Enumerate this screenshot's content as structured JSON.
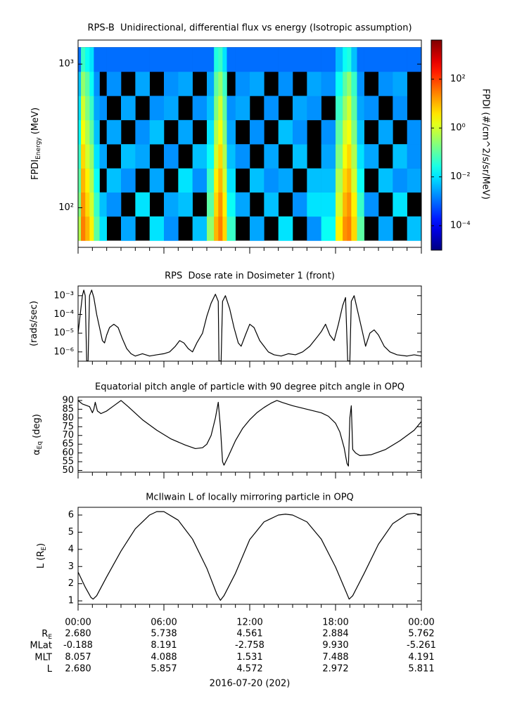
{
  "time_axis": {
    "xlim": [
      0,
      24
    ],
    "xticks": [
      {
        "value": 0,
        "label": "00:00"
      },
      {
        "value": 6,
        "label": "06:00"
      },
      {
        "value": 12,
        "label": "12:00"
      },
      {
        "value": 18,
        "label": "18:00"
      },
      {
        "value": 24,
        "label": "00:00"
      }
    ],
    "xminor_ticks": [
      1,
      2,
      3,
      4,
      5,
      7,
      8,
      9,
      10,
      11,
      13,
      14,
      15,
      16,
      17,
      19,
      20,
      21,
      22,
      23
    ],
    "xlabel": "2016-07-20 (202)"
  },
  "chart_data": [
    {
      "type": "heatmap",
      "title": "RPS-B  Unidirectional, differential flux vs energy (Isotropic assumption)",
      "ylabel": [
        {
          "text": "FPDI"
        },
        {
          "text": "Energy",
          "sub": true
        },
        {
          "text": " (MeV)"
        }
      ],
      "ylog": true,
      "ylim": [
        53,
        1470
      ],
      "yticks": [
        {
          "value": 100,
          "label": "10²"
        },
        {
          "value": 1000,
          "label": "10³"
        }
      ],
      "colorbar_label": "FPDI (#/cm^2/s/sr/MeV)",
      "zlim": [
        1e-05,
        4000
      ],
      "zticks": [
        {
          "value": 0.0001,
          "label": "10⁻⁴"
        },
        {
          "value": 0.01,
          "label": "10⁻²"
        },
        {
          "value": 1,
          "label": "10⁰"
        },
        {
          "value": 100,
          "label": "10²"
        }
      ],
      "x_edges": [
        0,
        0.2,
        0.5,
        0.8,
        1.1,
        1.5,
        2,
        3,
        4,
        5,
        6,
        7,
        8,
        9,
        9.5,
        9.8,
        10.1,
        10.4,
        11,
        12,
        13,
        14,
        15,
        16,
        17,
        18,
        18.5,
        18.8,
        19.1,
        19.5,
        20,
        21,
        22,
        23,
        24
      ],
      "y_edges": [
        59,
        87,
        128,
        188,
        277,
        408,
        601,
        886,
        1310
      ],
      "z": [
        [
          0.5,
          30,
          10,
          3,
          0.1,
          0.01,
          null,
          0.003,
          null,
          0.01,
          0.002,
          null,
          0.005,
          0.3,
          10,
          30,
          5,
          0.05,
          null,
          0.003,
          null,
          0.01,
          null,
          0.002,
          0.02,
          3,
          20,
          30,
          5,
          0.1,
          null,
          0.003,
          null,
          0.005
        ],
        [
          0.2,
          20,
          5,
          1,
          0.05,
          0.005,
          0.002,
          null,
          0.01,
          null,
          0.003,
          0.005,
          null,
          0.1,
          5,
          20,
          3,
          0.02,
          0.003,
          null,
          0.005,
          null,
          0.002,
          0.01,
          0.01,
          1,
          10,
          20,
          3,
          0.05,
          0.002,
          null,
          0.01,
          null
        ],
        [
          0.1,
          10,
          3,
          0.5,
          0.02,
          null,
          0.005,
          0.002,
          null,
          0.003,
          null,
          0.01,
          0.002,
          0.05,
          3,
          10,
          1,
          0.01,
          null,
          0.005,
          0.002,
          0.003,
          null,
          0.005,
          0.005,
          0.5,
          5,
          10,
          1,
          0.02,
          null,
          0.005,
          0.002,
          0.003
        ],
        [
          0.05,
          5,
          1,
          0.3,
          0.01,
          0.003,
          null,
          0.005,
          0.003,
          null,
          0.002,
          null,
          0.005,
          0.02,
          1,
          5,
          0.5,
          0.005,
          0.002,
          null,
          0.003,
          null,
          0.005,
          null,
          0.003,
          0.2,
          2,
          5,
          0.5,
          0.01,
          0.003,
          null,
          0.005,
          0.002
        ],
        [
          0.02,
          2,
          0.5,
          0.1,
          0.005,
          null,
          0.003,
          null,
          0.002,
          0.005,
          null,
          0.003,
          null,
          0.01,
          0.5,
          2,
          0.2,
          0.003,
          null,
          0.002,
          null,
          0.005,
          0.002,
          null,
          0.002,
          0.1,
          1,
          2,
          0.2,
          0.005,
          null,
          0.003,
          null,
          0.002
        ],
        [
          0.01,
          1,
          0.2,
          0.05,
          0.003,
          0.002,
          null,
          0.003,
          null,
          0.002,
          0.003,
          null,
          0.002,
          0.005,
          0.2,
          1,
          0.1,
          0.002,
          0.003,
          null,
          0.002,
          null,
          0.003,
          0.002,
          null,
          0.05,
          0.3,
          1,
          0.1,
          0.003,
          0.002,
          null,
          0.002,
          null
        ],
        [
          0.005,
          0.3,
          0.1,
          0.02,
          0.002,
          null,
          0.002,
          null,
          0.003,
          null,
          0.002,
          0.003,
          null,
          0.003,
          0.1,
          0.3,
          0.05,
          null,
          0.002,
          0.003,
          null,
          0.002,
          null,
          0.003,
          0.002,
          0.02,
          0.1,
          0.3,
          0.05,
          0.002,
          null,
          0.002,
          0.003,
          null
        ],
        [
          0.001,
          0.05,
          0.02,
          0.01,
          0.001,
          0.001,
          0.001,
          0.001,
          0.001,
          0.001,
          0.001,
          0.001,
          0.001,
          0.001,
          0.03,
          0.05,
          0.01,
          0.001,
          0.001,
          0.001,
          0.001,
          0.001,
          0.001,
          0.001,
          0.001,
          0.005,
          0.02,
          0.03,
          0.005,
          0.001,
          0.001,
          0.001,
          0.001,
          0.001
        ]
      ]
    },
    {
      "type": "line",
      "title": "RPS  Dose rate in Dosimeter 1 (front)",
      "ylabel": [
        {
          "text": "(rads/sec)"
        }
      ],
      "ylog": true,
      "ylim": [
        3.2e-07,
        0.0033
      ],
      "yticks": [
        {
          "value": 1e-06,
          "label": "10⁻⁶"
        },
        {
          "value": 1e-05,
          "label": "10⁻⁵"
        },
        {
          "value": 0.0001,
          "label": "10⁻⁴"
        },
        {
          "value": 0.001,
          "label": "10⁻³"
        }
      ],
      "color": "#000000",
      "x": [
        0,
        0.15,
        0.3,
        0.4,
        0.5,
        0.6,
        0.7,
        0.8,
        0.95,
        1.1,
        1.3,
        1.5,
        1.7,
        1.85,
        2,
        2.2,
        2.5,
        2.8,
        3.1,
        3.4,
        3.7,
        4,
        4.5,
        5,
        5.5,
        6,
        6.4,
        6.8,
        7.1,
        7.4,
        7.7,
        8,
        8.3,
        8.7,
        9,
        9.3,
        9.6,
        9.8,
        9.85,
        10,
        10.1,
        10.3,
        10.6,
        10.9,
        11.2,
        11.4,
        11.7,
        12,
        12.3,
        12.7,
        13,
        13.3,
        13.7,
        14.2,
        14.7,
        15.2,
        15.7,
        16.2,
        16.7,
        17,
        17.3,
        17.6,
        17.9,
        18.2,
        18.5,
        18.7,
        18.85,
        19,
        19.1,
        19.3,
        19.6,
        19.9,
        20.1,
        20.4,
        20.7,
        21,
        21.4,
        21.8,
        22.3,
        23,
        23.5,
        24
      ],
      "values": [
        1e-05,
        0.0001,
        0.001,
        0.002,
        0.001,
        3.3e-07,
        3.3e-07,
        0.001,
        0.002,
        0.0008,
        0.0001,
        2e-05,
        4e-06,
        3e-06,
        8e-06,
        2e-05,
        3e-05,
        2e-05,
        5e-06,
        1.5e-06,
        8e-07,
        6e-07,
        8e-07,
        6e-07,
        7e-07,
        8e-07,
        1e-06,
        2e-06,
        4e-06,
        3e-06,
        1.5e-06,
        1e-06,
        3e-06,
        1e-05,
        8e-05,
        0.0004,
        0.0012,
        0.0005,
        3.3e-07,
        3.3e-07,
        0.0005,
        0.001,
        0.0002,
        2e-05,
        3e-06,
        2e-06,
        8e-06,
        3e-05,
        2e-05,
        4e-06,
        2e-06,
        1e-06,
        7e-07,
        6e-07,
        8e-07,
        7e-07,
        1e-06,
        2e-06,
        6e-06,
        1.2e-05,
        3e-05,
        8e-06,
        4e-06,
        3e-05,
        0.0003,
        0.0008,
        3.3e-07,
        3.3e-07,
        0.0005,
        0.001,
        0.0001,
        1e-05,
        2e-06,
        1e-05,
        1.5e-05,
        8e-06,
        2e-06,
        1e-06,
        7e-07,
        6e-07,
        7e-07,
        6e-07
      ]
    },
    {
      "type": "line",
      "title": "Equatorial pitch angle of particle with 90 degree pitch angle in OPQ",
      "ylabel": [
        {
          "text": "α"
        },
        {
          "text": "Eq",
          "sub": true
        },
        {
          "text": " (deg)"
        }
      ],
      "ylog": false,
      "ylim": [
        49,
        92
      ],
      "yticks": [
        50,
        55,
        60,
        65,
        70,
        75,
        80,
        85,
        90
      ],
      "color": "#000000",
      "x": [
        0,
        0.3,
        0.8,
        1,
        1.1,
        1.2,
        1.35,
        1.6,
        2,
        2.5,
        3,
        3.5,
        4.5,
        5.5,
        6.5,
        7.5,
        8.2,
        8.7,
        9,
        9.3,
        9.6,
        9.8,
        9.95,
        10.1,
        10.2,
        10.5,
        11,
        11.5,
        12,
        12.5,
        13,
        13.5,
        13.9,
        14.3,
        15,
        16,
        17,
        17.5,
        18,
        18.3,
        18.6,
        18.8,
        18.9,
        19,
        19.1,
        19.2,
        19.4,
        19.7,
        20.5,
        21.5,
        22.5,
        23.5,
        24
      ],
      "values": [
        90,
        88,
        86.5,
        83,
        85,
        89,
        84,
        82.5,
        84,
        87,
        90,
        86.5,
        79,
        73,
        68,
        64.5,
        62.5,
        63,
        65,
        70,
        80,
        89,
        75,
        55,
        53,
        58,
        67,
        74,
        79,
        83,
        86,
        88.5,
        90,
        88.8,
        87,
        85,
        83,
        81,
        77,
        72,
        63,
        54,
        52.5,
        80,
        87,
        62,
        60,
        58.5,
        59,
        62,
        67,
        73,
        78
      ]
    },
    {
      "type": "line",
      "title": "McIlwain L of locally mirroring particle in OPQ",
      "ylabel": [
        {
          "text": "L (R"
        },
        {
          "text": "E",
          "sub": true
        },
        {
          "text": ")"
        }
      ],
      "ylog": false,
      "ylim": [
        0.8,
        6.45
      ],
      "yticks": [
        1,
        2,
        3,
        4,
        5,
        6
      ],
      "color": "#000000",
      "x": [
        0,
        0.5,
        0.9,
        1.05,
        1.3,
        2,
        3,
        4,
        5,
        5.5,
        6,
        7,
        8,
        9,
        9.7,
        9.95,
        10.2,
        11,
        12,
        13,
        14,
        14.5,
        15,
        16,
        17,
        18,
        18.7,
        18.95,
        19.2,
        20,
        21,
        22,
        23,
        23.5,
        24
      ],
      "values": [
        2.68,
        1.8,
        1.2,
        1.1,
        1.3,
        2.4,
        3.9,
        5.2,
        6.0,
        6.2,
        6.2,
        5.7,
        4.6,
        2.9,
        1.4,
        1.03,
        1.3,
        2.6,
        4.57,
        5.6,
        6.0,
        6.05,
        6.0,
        5.6,
        4.6,
        2.97,
        1.6,
        1.1,
        1.3,
        2.6,
        4.3,
        5.5,
        6.05,
        6.1,
        6.0
      ]
    }
  ],
  "ephemeris": {
    "rows": [
      {
        "label": [
          {
            "text": "R"
          },
          {
            "text": "E",
            "sub": true
          }
        ],
        "values": [
          "2.680",
          "5.738",
          "4.561",
          "2.884",
          "5.762"
        ]
      },
      {
        "label": [
          {
            "text": "MLat"
          }
        ],
        "values": [
          "-0.188",
          "8.191",
          "-2.758",
          "9.930",
          "-5.261"
        ]
      },
      {
        "label": [
          {
            "text": "MLT"
          }
        ],
        "values": [
          "8.057",
          "4.088",
          "1.531",
          "7.488",
          "4.191"
        ]
      },
      {
        "label": [
          {
            "text": "L"
          }
        ],
        "values": [
          "2.680",
          "5.857",
          "4.572",
          "2.972",
          "5.811"
        ]
      }
    ]
  }
}
